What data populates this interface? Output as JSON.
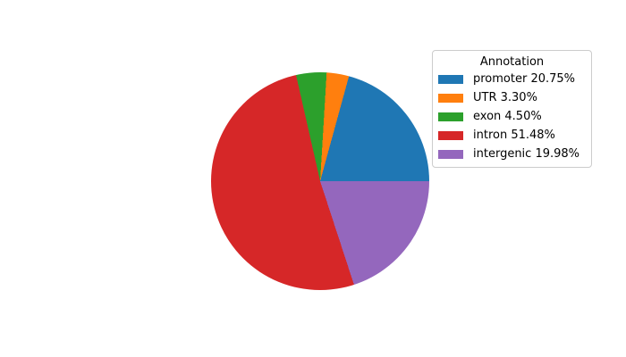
{
  "figure": {
    "background": "#ffffff"
  },
  "chart_data": {
    "type": "pie",
    "title": "",
    "categories": [
      "promoter",
      "UTR",
      "exon",
      "intron",
      "intergenic"
    ],
    "values": [
      20.75,
      3.3,
      4.5,
      51.48,
      19.98
    ],
    "colors": [
      "#1f77b4",
      "#ff7f0e",
      "#2ca02c",
      "#d62728",
      "#9467bd"
    ],
    "start_angle_deg": 0,
    "direction": "counterclockwise",
    "legend_position": "upper right",
    "legend": {
      "title": "Annotation",
      "items": [
        {
          "label": "promoter 20.75%",
          "color": "#1f77b4"
        },
        {
          "label": "UTR 3.30%",
          "color": "#ff7f0e"
        },
        {
          "label": "exon 4.50%",
          "color": "#2ca02c"
        },
        {
          "label": "intron 51.48%",
          "color": "#d62728"
        },
        {
          "label": "intergenic 19.98%",
          "color": "#9467bd"
        }
      ]
    }
  }
}
